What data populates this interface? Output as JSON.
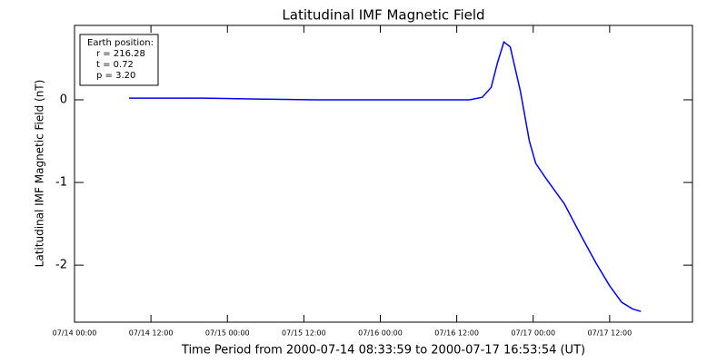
{
  "chart_data": {
    "type": "line",
    "title": "Latitudinal IMF Magnetic Field",
    "xlabel": "Time Period from 2000-07-14 08:33:59 to 2000-07-17 16:53:54 (UT)",
    "ylabel": "Latitudinal IMF Magnetic Field (nT)",
    "annotations": [
      "Earth position:",
      "r = 216.28",
      "t = 0.72",
      "p = 3.20"
    ],
    "xlim": [
      0,
      97
    ],
    "ylim": [
      -2.69,
      0.9
    ],
    "xticks": [
      {
        "value": 0,
        "label": "07/14 00:00"
      },
      {
        "value": 12,
        "label": "07/14 12:00"
      },
      {
        "value": 24,
        "label": "07/15 00:00"
      },
      {
        "value": 36,
        "label": "07/15 12:00"
      },
      {
        "value": 48,
        "label": "07/16 00:00"
      },
      {
        "value": 60,
        "label": "07/16 12:00"
      },
      {
        "value": 72,
        "label": "07/17 00:00"
      },
      {
        "value": 84,
        "label": "07/17 12:00"
      }
    ],
    "yticks": [
      0,
      -1,
      -2
    ],
    "series": [
      {
        "color": "#0000ff",
        "x": [
          8.57,
          20,
          28.6,
          38,
          60,
          62,
          64,
          65.4,
          66.4,
          67.4,
          68.4,
          70,
          71.4,
          72.4,
          74,
          76.9,
          79.7,
          81.9,
          84,
          85.9,
          87.6,
          88.9
        ],
        "values": [
          0.02,
          0.02,
          0.01,
          0.0,
          0.0,
          0.0,
          0.03,
          0.15,
          0.45,
          0.7,
          0.64,
          0.1,
          -0.5,
          -0.77,
          -0.95,
          -1.26,
          -1.67,
          -1.98,
          -2.25,
          -2.45,
          -2.53,
          -2.56
        ]
      }
    ]
  }
}
